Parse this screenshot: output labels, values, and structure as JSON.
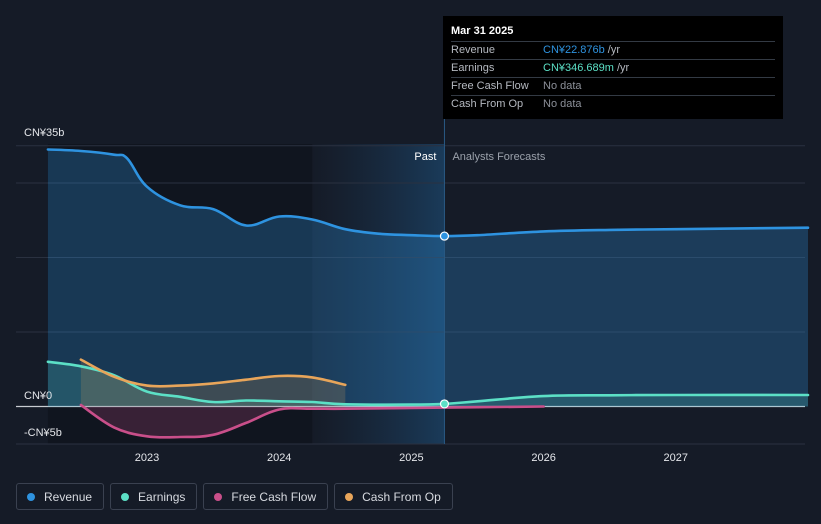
{
  "chart_data": {
    "type": "line",
    "currency_unit": "CN¥",
    "y_unit": "billion",
    "ylim": [
      -5,
      35
    ],
    "xlim": [
      2022.3,
      2028.0
    ],
    "y_tick_labels": [
      {
        "value": 35,
        "label": "CN¥35b"
      },
      {
        "value": 0,
        "label": "CN¥0"
      },
      {
        "value": -5,
        "label": "-CN¥5b"
      }
    ],
    "gridlines": [
      35,
      30,
      20,
      10,
      0
    ],
    "x_ticks": [
      {
        "value": 2023,
        "label": "2023"
      },
      {
        "value": 2024,
        "label": "2024"
      },
      {
        "value": 2025,
        "label": "2025"
      },
      {
        "value": 2026,
        "label": "2026"
      },
      {
        "value": 2027,
        "label": "2027"
      }
    ],
    "divider_x": 2025.25,
    "shaded_region_start": 2024.25,
    "past_label": "Past",
    "forecast_label": "Analysts Forecasts",
    "series": [
      {
        "name": "Revenue",
        "color": "#2e93e0",
        "fill": true,
        "points": [
          [
            2022.25,
            34.5
          ],
          [
            2022.5,
            34.3
          ],
          [
            2022.75,
            33.8
          ],
          [
            2022.85,
            33.3
          ],
          [
            2023.0,
            29.5
          ],
          [
            2023.25,
            27.0
          ],
          [
            2023.5,
            26.5
          ],
          [
            2023.75,
            24.3
          ],
          [
            2024.0,
            25.5
          ],
          [
            2024.25,
            25.1
          ],
          [
            2024.5,
            23.8
          ],
          [
            2024.75,
            23.2
          ],
          [
            2025.0,
            23.0
          ],
          [
            2025.25,
            22.876
          ],
          [
            2025.5,
            23.0
          ],
          [
            2026.0,
            23.5
          ],
          [
            2026.5,
            23.7
          ],
          [
            2027.0,
            23.8
          ],
          [
            2027.5,
            23.9
          ],
          [
            2028.0,
            24.0
          ]
        ]
      },
      {
        "name": "Earnings",
        "color": "#5ce0c6",
        "fill": true,
        "points": [
          [
            2022.25,
            6.0
          ],
          [
            2022.5,
            5.4
          ],
          [
            2022.75,
            4.2
          ],
          [
            2023.0,
            2.0
          ],
          [
            2023.25,
            1.3
          ],
          [
            2023.5,
            0.6
          ],
          [
            2023.75,
            0.8
          ],
          [
            2024.0,
            0.7
          ],
          [
            2024.25,
            0.6
          ],
          [
            2024.5,
            0.3
          ],
          [
            2025.0,
            0.25
          ],
          [
            2025.25,
            0.347
          ],
          [
            2025.5,
            0.7
          ],
          [
            2026.0,
            1.4
          ],
          [
            2026.5,
            1.5
          ],
          [
            2027.0,
            1.55
          ],
          [
            2028.0,
            1.55
          ]
        ]
      },
      {
        "name": "Free Cash Flow",
        "color": "#c94f8a",
        "fill": true,
        "points": [
          [
            2022.5,
            0.2
          ],
          [
            2022.75,
            -2.8
          ],
          [
            2023.0,
            -4.0
          ],
          [
            2023.25,
            -4.1
          ],
          [
            2023.5,
            -3.8
          ],
          [
            2023.75,
            -2.2
          ],
          [
            2024.0,
            -0.4
          ],
          [
            2024.25,
            -0.3
          ],
          [
            2024.5,
            -0.3
          ],
          [
            2025.0,
            -0.2
          ],
          [
            2025.5,
            -0.1
          ],
          [
            2026.0,
            0.0
          ]
        ]
      },
      {
        "name": "Cash From Op",
        "color": "#e8a55a",
        "fill": true,
        "points": [
          [
            2022.5,
            6.3
          ],
          [
            2022.75,
            4.0
          ],
          [
            2023.0,
            2.8
          ],
          [
            2023.25,
            2.8
          ],
          [
            2023.5,
            3.1
          ],
          [
            2023.75,
            3.6
          ],
          [
            2024.0,
            4.1
          ],
          [
            2024.25,
            3.9
          ],
          [
            2024.5,
            2.9
          ]
        ]
      }
    ]
  },
  "tooltip": {
    "date": "Mar 31 2025",
    "rows": [
      {
        "label": "Revenue",
        "value": "CN¥22.876b",
        "unit": "/yr",
        "color": "#2e93e0"
      },
      {
        "label": "Earnings",
        "value": "CN¥346.689m",
        "unit": "/yr",
        "color": "#5ce0c6"
      },
      {
        "label": "Free Cash Flow",
        "value": "No data",
        "unit": "",
        "color": ""
      },
      {
        "label": "Cash From Op",
        "value": "No data",
        "unit": "",
        "color": ""
      }
    ]
  },
  "legend": [
    {
      "label": "Revenue",
      "color": "#2e93e0"
    },
    {
      "label": "Earnings",
      "color": "#5ce0c6"
    },
    {
      "label": "Free Cash Flow",
      "color": "#c94f8a"
    },
    {
      "label": "Cash From Op",
      "color": "#e8a55a"
    }
  ]
}
